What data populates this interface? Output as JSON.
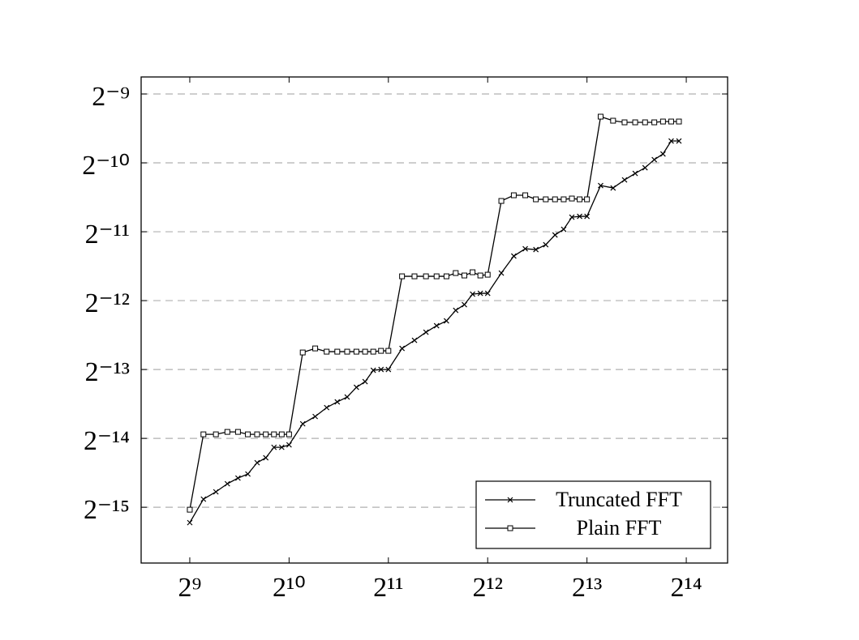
{
  "chart_data": {
    "type": "line",
    "xscale": "log2",
    "yscale": "log2",
    "grid": true,
    "legend": "lower right",
    "x": [
      512,
      563.2,
      614.4,
      665.6,
      716.8,
      768,
      819.2,
      870.4,
      921.6,
      972.8,
      1024,
      1126.4,
      1228.8,
      1331.2,
      1433.6,
      1536,
      1638.4,
      1740.8,
      1843.2,
      1945.6,
      2048,
      2252.8,
      2457.6,
      2662.4,
      2867.2,
      3072,
      3276.8,
      3481.6,
      3686.4,
      3891.2,
      4096,
      4505.6,
      4915.2,
      5324.8,
      5734.4,
      6144,
      6553.6,
      6963.2,
      7372.8,
      7782.4,
      8192,
      9011.2,
      9830.4,
      10649.6,
      11468.8,
      12288,
      13107.2,
      13926.4,
      14745.6,
      15564.8
    ],
    "series": [
      {
        "name": "Truncated FFT",
        "color": "#000000",
        "marker": "x",
        "values": [
          2.614e-05,
          3.311e-05,
          3.563e-05,
          3.866e-05,
          4.093e-05,
          4.263e-05,
          4.779e-05,
          5.019e-05,
          5.58e-05,
          5.58e-05,
          5.718e-05,
          7.068e-05,
          7.606e-05,
          8.32e-05,
          8.81e-05,
          9.251e-05,
          0.00010203,
          0.00010802,
          0.00012108,
          0.00012207,
          0.00012207,
          0.0001509,
          0.0001637,
          0.0001776,
          0.0001896,
          0.0001991,
          0.0002214,
          0.0002344,
          0.0002606,
          0.0002627,
          0.0002627,
          0.0003222,
          0.0003823,
          0.0004114,
          0.0004081,
          0.0004286,
          0.0004726,
          0.0005004,
          0.0005654,
          0.0005701,
          0.0005701,
          0.0007772,
          0.0007584,
          0.0008228,
          0.0008783,
          0.00093,
          0.001009,
          0.0010682,
          0.001217,
          0.001217
        ]
      },
      {
        "name": "Plain FFT",
        "color": "#000000",
        "marker": "square",
        "values": [
          2.978e-05,
          6.357e-05,
          6.357e-05,
          6.515e-05,
          6.515e-05,
          6.357e-05,
          6.357e-05,
          6.357e-05,
          6.357e-05,
          6.357e-05,
          6.357e-05,
          0.00014487,
          0.0001509,
          0.00014607,
          0.00014607,
          0.00014607,
          0.00014607,
          0.00014607,
          0.00014607,
          0.00014727,
          0.00014727,
          0.0003118,
          0.0003118,
          0.0003118,
          0.0003118,
          0.0003118,
          0.0003222,
          0.0003144,
          0.0003248,
          0.0003144,
          0.0003169,
          0.0006656,
          0.0007048,
          0.0007048,
          0.0006766,
          0.0006766,
          0.0006766,
          0.0006766,
          0.0006821,
          0.0006766,
          0.0006766,
          0.0015545,
          0.0014924,
          0.0014682,
          0.0014682,
          0.0014682,
          0.0014682,
          0.0014801,
          0.0014801,
          0.0014801
        ]
      }
    ],
    "xlim": [
      364.6,
      21862
    ],
    "ylim": [
      1.7407e-05,
      0.002318
    ],
    "xticks": [
      {
        "value": 512,
        "label": "2⁹"
      },
      {
        "value": 1024,
        "label": "2¹⁰"
      },
      {
        "value": 2048,
        "label": "2¹¹"
      },
      {
        "value": 4096,
        "label": "2¹²"
      },
      {
        "value": 8192,
        "label": "2¹³"
      },
      {
        "value": 16384,
        "label": "2¹⁴"
      }
    ],
    "yticks": [
      {
        "value": 0.001953125,
        "label": "2⁻⁹"
      },
      {
        "value": 0.0009765625,
        "label": "2⁻¹⁰"
      },
      {
        "value": 0.00048828125,
        "label": "2⁻¹¹"
      },
      {
        "value": 0.000244140625,
        "label": "2⁻¹²"
      },
      {
        "value": 0.0001220703125,
        "label": "2⁻¹³"
      },
      {
        "value": 6.103515625e-05,
        "label": "2⁻¹⁴"
      },
      {
        "value": 3.0517578125e-05,
        "label": "2⁻¹⁵"
      }
    ]
  }
}
